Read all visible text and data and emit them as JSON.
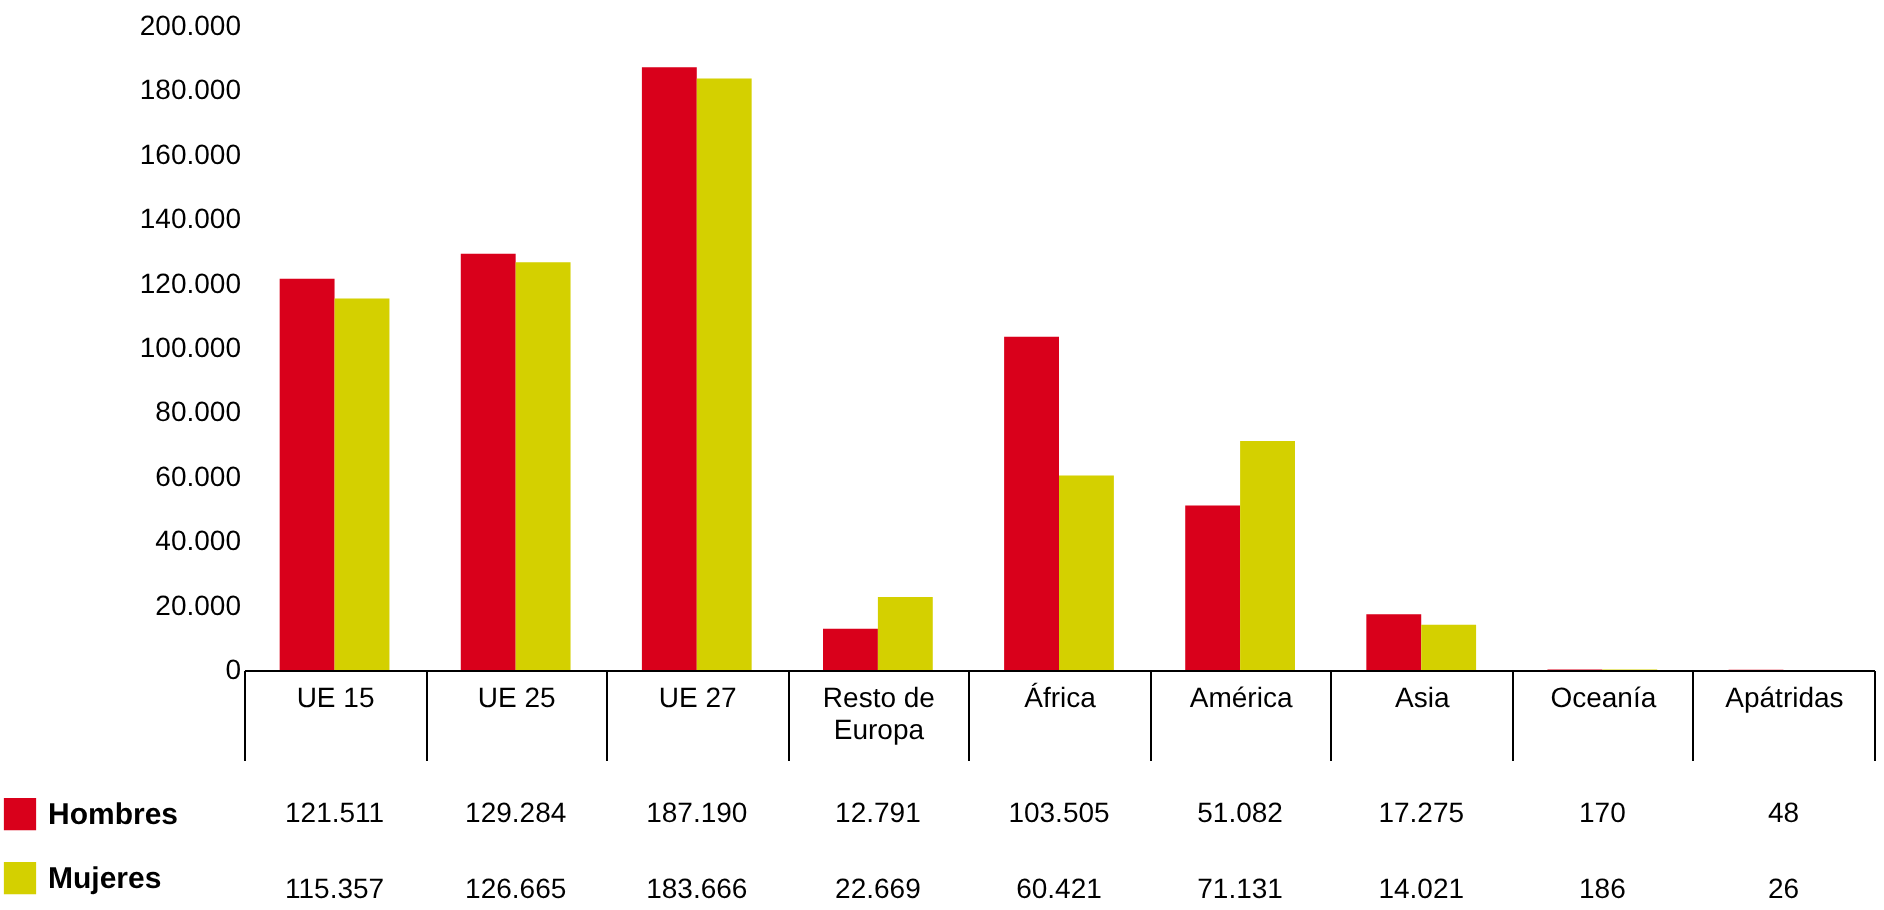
{
  "chart_data": {
    "type": "bar",
    "categories": [
      "UE 15",
      "UE 25",
      "UE 27",
      "Resto de\nEuropa",
      "África",
      "América",
      "Asia",
      "Oceanía",
      "Apátridas"
    ],
    "series": [
      {
        "name": "Hombres",
        "color": "#d9001b",
        "values": [
          121511,
          129284,
          187190,
          12791,
          103505,
          51082,
          17275,
          170,
          48
        ],
        "value_labels": [
          "121.511",
          "129.284",
          "187.190",
          "12.791",
          "103.505",
          "51.082",
          "17.275",
          "170",
          "48"
        ]
      },
      {
        "name": "Mujeres",
        "color": "#d4d000",
        "values": [
          115357,
          126665,
          183666,
          22669,
          60421,
          71131,
          14021,
          186,
          26
        ],
        "value_labels": [
          "115.357",
          "126.665",
          "183.666",
          "22.669",
          "60.421",
          "71.131",
          "14.021",
          "186",
          "26"
        ]
      }
    ],
    "ylim": [
      0,
      200000
    ],
    "yticks": [
      0,
      {
        "value": 20000,
        "label": "20.000"
      },
      {
        "value": 40000,
        "label": "40.000"
      },
      {
        "value": 60000,
        "label": "60.000"
      },
      {
        "value": 80000,
        "label": "80.000"
      },
      {
        "value": 100000,
        "label": "100.000"
      },
      {
        "value": 120000,
        "label": "120.000"
      },
      {
        "value": 140000,
        "label": "140.000"
      },
      {
        "value": 160000,
        "label": "160.000"
      },
      {
        "value": 180000,
        "label": "180.000"
      },
      {
        "value": 200000,
        "label": "200.000"
      }
    ],
    "grid": false,
    "legend": "bottom left"
  }
}
